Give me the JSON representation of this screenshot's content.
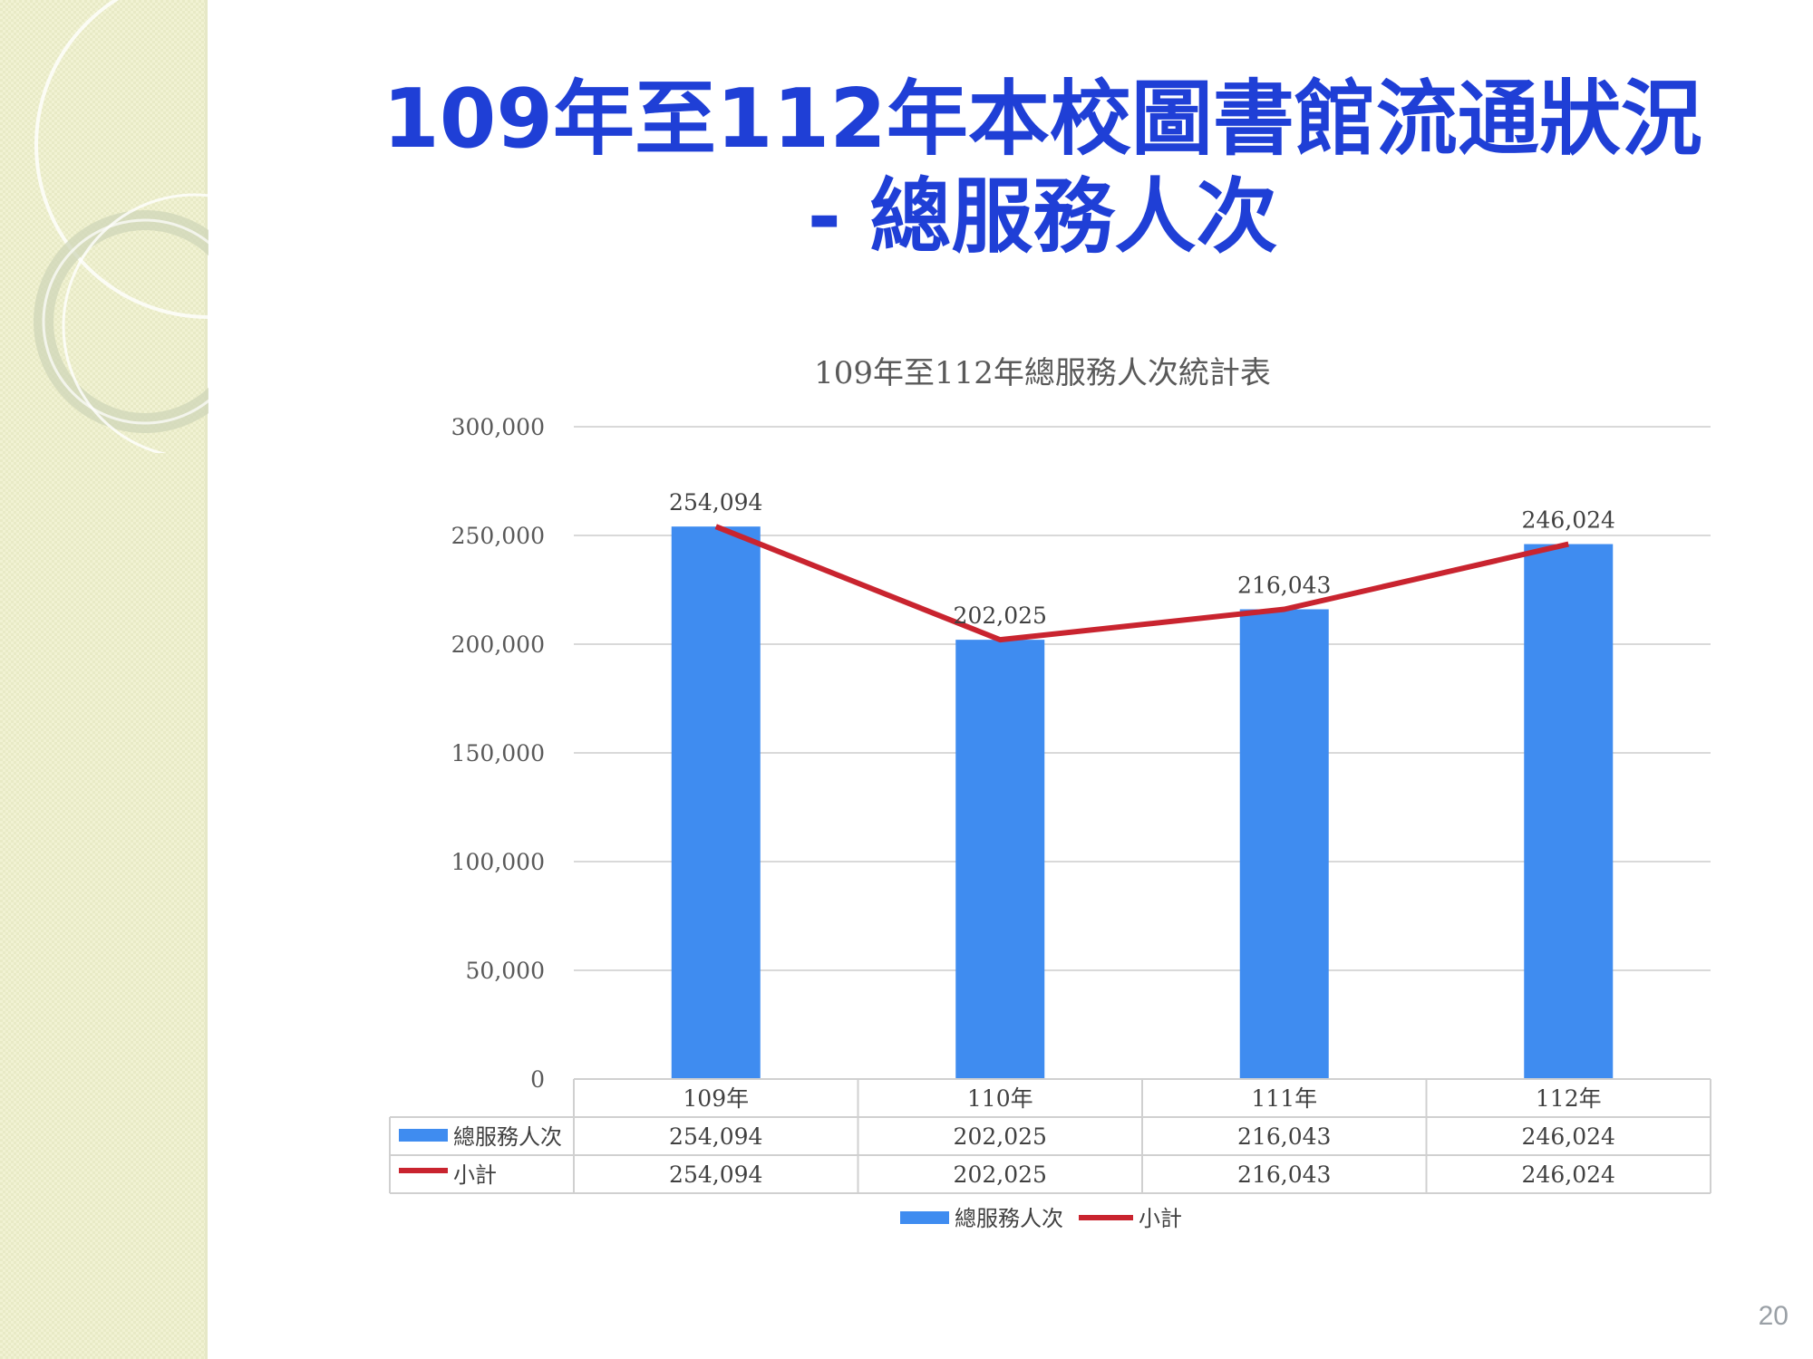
{
  "slide": {
    "title_line1": "109年至112年本校圖書館流通狀況",
    "title_line2": "- 總服務人次",
    "page_number": "20"
  },
  "colors": {
    "title": "#1f3fd6",
    "bar": "#3f8cf0",
    "line": "#c9242f",
    "grid": "#d9d9d9",
    "sidebar": "#f1f2d3"
  },
  "chart_data": {
    "type": "bar",
    "title": "109年至112年總服務人次統計表",
    "categories": [
      "109年",
      "110年",
      "111年",
      "112年"
    ],
    "series": [
      {
        "name": "總服務人次",
        "type": "bar",
        "values": [
          254094,
          202025,
          216043,
          246024
        ],
        "labels": [
          "254,094",
          "202,025",
          "216,043",
          "246,024"
        ]
      },
      {
        "name": "小計",
        "type": "line",
        "values": [
          254094,
          202025,
          216043,
          246024
        ],
        "labels": [
          "254,094",
          "202,025",
          "216,043",
          "246,024"
        ]
      }
    ],
    "ylim": [
      0,
      300000
    ],
    "yticks": [
      "0",
      "50,000",
      "100,000",
      "150,000",
      "200,000",
      "250,000",
      "300,000"
    ],
    "grid": true,
    "legend": "bottom",
    "data_table": true
  }
}
